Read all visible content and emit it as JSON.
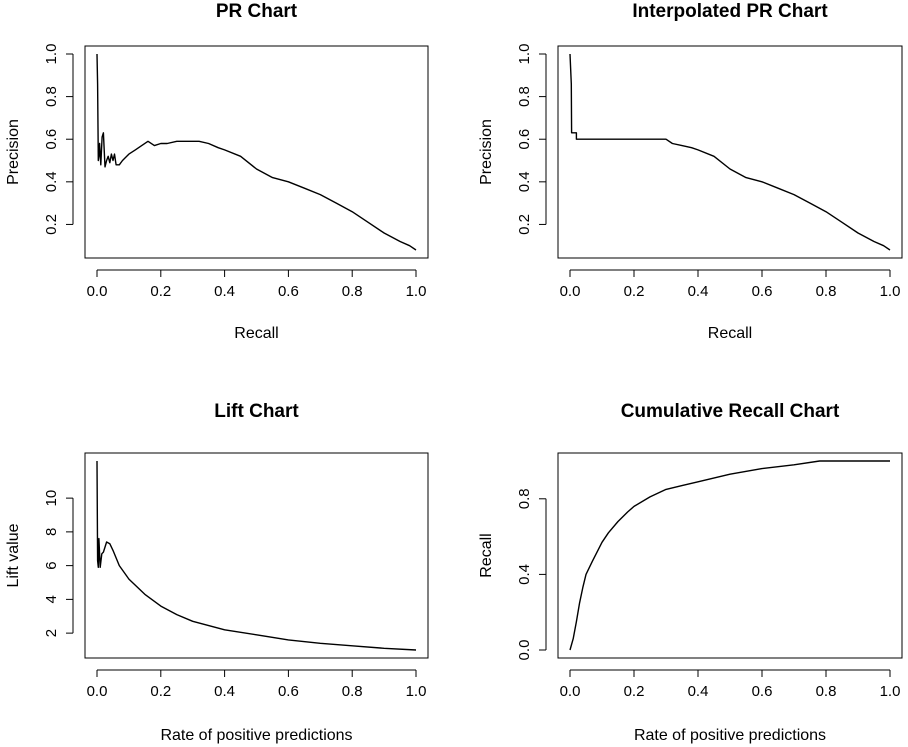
{
  "chart_data": [
    {
      "id": "pr",
      "type": "line",
      "title": "PR Chart",
      "xlabel": "Recall",
      "ylabel": "Precision",
      "xlim": [
        0,
        1
      ],
      "ylim": [
        0.08,
        1.0
      ],
      "xticks": [
        0,
        0.2,
        0.4,
        0.6,
        0.8,
        1.0
      ],
      "xtick_labels": [
        "0.0",
        "0.2",
        "0.4",
        "0.6",
        "0.8",
        "1.0"
      ],
      "yticks": [
        0.2,
        0.4,
        0.6,
        0.8,
        1.0
      ],
      "ytick_labels": [
        "0.2",
        "0.4",
        "0.6",
        "0.8",
        "1.0"
      ],
      "series": [
        {
          "x": [
            0.0,
            0.002,
            0.004,
            0.006,
            0.008,
            0.012,
            0.016,
            0.02,
            0.025,
            0.03,
            0.035,
            0.04,
            0.045,
            0.05,
            0.055,
            0.06,
            0.07,
            0.08,
            0.1,
            0.12,
            0.14,
            0.16,
            0.18,
            0.2,
            0.22,
            0.25,
            0.28,
            0.3,
            0.32,
            0.35,
            0.38,
            0.4,
            0.45,
            0.5,
            0.55,
            0.6,
            0.65,
            0.7,
            0.75,
            0.8,
            0.85,
            0.9,
            0.95,
            0.98,
            1.0
          ],
          "y": [
            1.0,
            0.86,
            0.5,
            0.52,
            0.58,
            0.48,
            0.61,
            0.63,
            0.47,
            0.5,
            0.52,
            0.49,
            0.53,
            0.5,
            0.53,
            0.48,
            0.48,
            0.5,
            0.53,
            0.55,
            0.57,
            0.59,
            0.57,
            0.58,
            0.58,
            0.59,
            0.59,
            0.59,
            0.59,
            0.58,
            0.56,
            0.55,
            0.52,
            0.46,
            0.42,
            0.4,
            0.37,
            0.34,
            0.3,
            0.26,
            0.21,
            0.16,
            0.12,
            0.1,
            0.08
          ]
        }
      ]
    },
    {
      "id": "ipr",
      "type": "line",
      "title": "Interpolated PR Chart",
      "xlabel": "Recall",
      "ylabel": "Precision",
      "xlim": [
        0,
        1
      ],
      "ylim": [
        0.08,
        1.0
      ],
      "xticks": [
        0,
        0.2,
        0.4,
        0.6,
        0.8,
        1.0
      ],
      "xtick_labels": [
        "0.0",
        "0.2",
        "0.4",
        "0.6",
        "0.8",
        "1.0"
      ],
      "yticks": [
        0.2,
        0.4,
        0.6,
        0.8,
        1.0
      ],
      "ytick_labels": [
        "0.2",
        "0.4",
        "0.6",
        "0.8",
        "1.0"
      ],
      "series": [
        {
          "x": [
            0.0,
            0.004,
            0.005,
            0.01,
            0.02,
            0.02,
            0.3,
            0.32,
            0.35,
            0.38,
            0.4,
            0.45,
            0.5,
            0.55,
            0.6,
            0.65,
            0.7,
            0.75,
            0.8,
            0.85,
            0.9,
            0.95,
            0.98,
            1.0
          ],
          "y": [
            1.0,
            0.86,
            0.63,
            0.63,
            0.63,
            0.6,
            0.6,
            0.58,
            0.57,
            0.56,
            0.55,
            0.52,
            0.46,
            0.42,
            0.4,
            0.37,
            0.34,
            0.3,
            0.26,
            0.21,
            0.16,
            0.12,
            0.1,
            0.08
          ]
        }
      ]
    },
    {
      "id": "lift",
      "type": "line",
      "title": "Lift Chart",
      "xlabel": "Rate of positive predictions",
      "ylabel": "Lift value",
      "xlim": [
        0,
        1
      ],
      "ylim": [
        1.0,
        12.2
      ],
      "xticks": [
        0,
        0.2,
        0.4,
        0.6,
        0.8,
        1.0
      ],
      "xtick_labels": [
        "0.0",
        "0.2",
        "0.4",
        "0.6",
        "0.8",
        "1.0"
      ],
      "yticks": [
        2,
        4,
        6,
        8,
        10
      ],
      "ytick_labels": [
        "2",
        "4",
        "6",
        "8",
        "10"
      ],
      "series": [
        {
          "x": [
            0.0,
            0.002,
            0.004,
            0.006,
            0.01,
            0.015,
            0.02,
            0.025,
            0.03,
            0.04,
            0.05,
            0.07,
            0.1,
            0.15,
            0.2,
            0.25,
            0.3,
            0.4,
            0.5,
            0.6,
            0.7,
            0.8,
            0.9,
            1.0
          ],
          "y": [
            12.2,
            6.3,
            5.9,
            7.6,
            5.9,
            6.7,
            6.8,
            7.1,
            7.4,
            7.3,
            6.9,
            6.0,
            5.2,
            4.3,
            3.6,
            3.1,
            2.7,
            2.2,
            1.9,
            1.6,
            1.4,
            1.25,
            1.1,
            1.0
          ]
        }
      ]
    },
    {
      "id": "cumrecall",
      "type": "line",
      "title": "Cumulative Recall Chart",
      "xlabel": "Rate of positive predictions",
      "ylabel": "Recall",
      "xlim": [
        0,
        1
      ],
      "ylim": [
        0.0,
        1.0
      ],
      "xticks": [
        0,
        0.2,
        0.4,
        0.6,
        0.8,
        1.0
      ],
      "xtick_labels": [
        "0.0",
        "0.2",
        "0.4",
        "0.6",
        "0.8",
        "1.0"
      ],
      "yticks": [
        0.0,
        0.4,
        0.8
      ],
      "ytick_labels": [
        "0.0",
        "0.4",
        "0.8"
      ],
      "series": [
        {
          "x": [
            0.0,
            0.01,
            0.02,
            0.03,
            0.04,
            0.05,
            0.07,
            0.1,
            0.12,
            0.15,
            0.18,
            0.2,
            0.25,
            0.3,
            0.35,
            0.4,
            0.5,
            0.6,
            0.7,
            0.78,
            0.8,
            0.9,
            1.0
          ],
          "y": [
            0.0,
            0.06,
            0.15,
            0.25,
            0.33,
            0.4,
            0.47,
            0.57,
            0.62,
            0.68,
            0.73,
            0.76,
            0.81,
            0.85,
            0.87,
            0.89,
            0.93,
            0.96,
            0.98,
            1.0,
            1.0,
            1.0,
            1.0
          ]
        }
      ]
    }
  ]
}
